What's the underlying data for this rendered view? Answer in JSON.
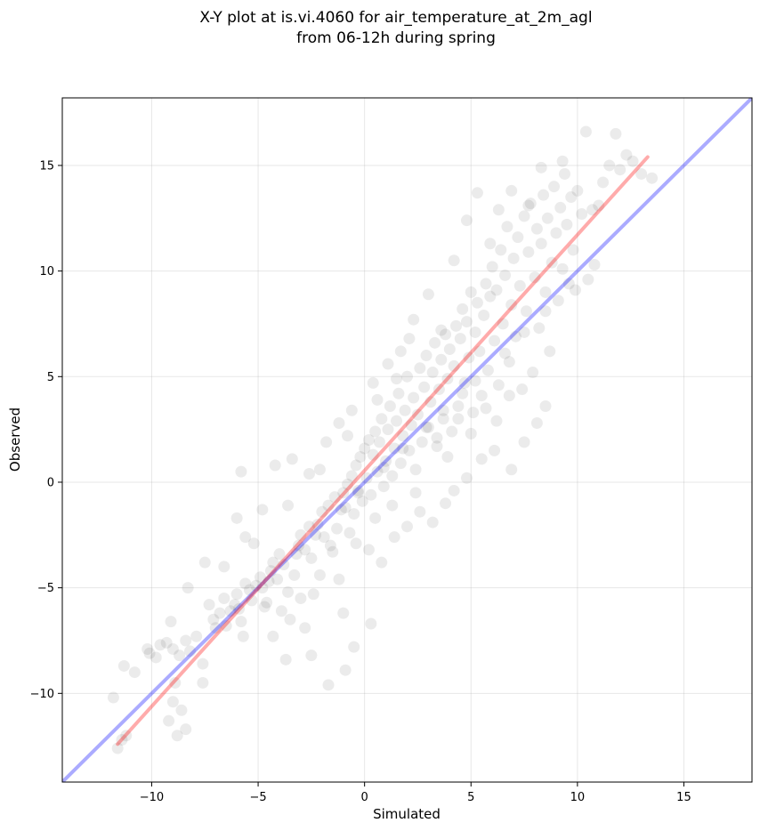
{
  "chart_data": {
    "type": "scatter",
    "title_lines": [
      "X-Y plot at is.vi.4060 for air_temperature_at_2m_agl",
      "from 06-12h during spring"
    ],
    "xlabel": "Simulated",
    "ylabel": "Observed",
    "xlim": [
      -14.2,
      18.2
    ],
    "ylim": [
      -14.2,
      18.2
    ],
    "xticks": [
      -10,
      -5,
      0,
      5,
      10,
      15
    ],
    "yticks": [
      -10,
      -5,
      0,
      5,
      10,
      15
    ],
    "xtick_labels": [
      "−10",
      "−5",
      "0",
      "5",
      "10",
      "15"
    ],
    "ytick_labels": [
      "−10",
      "−5",
      "0",
      "5",
      "10",
      "15"
    ],
    "grid": true,
    "legend": "none",
    "point_color": "#000000",
    "point_alpha": 0.08,
    "identity_line": {
      "x": [
        -14.2,
        18.2
      ],
      "y": [
        -14.2,
        18.2
      ],
      "color": "#0000ff",
      "alpha": 0.33
    },
    "fit_line": {
      "x": [
        -11.6,
        13.3
      ],
      "y": [
        -12.4,
        15.4
      ],
      "color": "#ff0000",
      "alpha": 0.33
    },
    "points": [
      [
        -11.6,
        -12.6
      ],
      [
        -11.4,
        -12.2
      ],
      [
        -11.2,
        -12.0
      ],
      [
        -11.8,
        -10.2
      ],
      [
        -11.3,
        -8.7
      ],
      [
        -10.8,
        -9.0
      ],
      [
        -10.1,
        -8.1
      ],
      [
        -9.6,
        -7.7
      ],
      [
        -9.8,
        -8.3
      ],
      [
        -9.3,
        -7.6
      ],
      [
        -9.0,
        -7.9
      ],
      [
        -8.7,
        -8.2
      ],
      [
        -8.4,
        -7.5
      ],
      [
        -8.2,
        -8.0
      ],
      [
        -7.9,
        -7.3
      ],
      [
        -7.6,
        -8.6
      ],
      [
        -8.9,
        -9.5
      ],
      [
        -9.0,
        -10.4
      ],
      [
        -9.2,
        -11.3
      ],
      [
        -8.8,
        -12.0
      ],
      [
        -8.4,
        -11.7
      ],
      [
        -8.6,
        -10.8
      ],
      [
        -7.6,
        -9.5
      ],
      [
        -7.3,
        -5.8
      ],
      [
        -7.1,
        -6.5
      ],
      [
        -7.0,
        -6.9
      ],
      [
        -6.8,
        -6.2
      ],
      [
        -6.6,
        -5.5
      ],
      [
        -6.5,
        -6.8
      ],
      [
        -6.3,
        -6.1
      ],
      [
        -6.1,
        -5.8
      ],
      [
        -6.0,
        -5.3
      ],
      [
        -5.8,
        -6.6
      ],
      [
        -5.7,
        -7.3
      ],
      [
        -5.9,
        -6.0
      ],
      [
        -5.6,
        -4.8
      ],
      [
        -5.4,
        -5.1
      ],
      [
        -5.3,
        -5.6
      ],
      [
        -5.1,
        -4.9
      ],
      [
        -4.9,
        -4.5
      ],
      [
        -4.8,
        -5.0
      ],
      [
        -4.6,
        -5.7
      ],
      [
        -4.4,
        -4.2
      ],
      [
        -4.3,
        -3.8
      ],
      [
        -4.1,
        -4.6
      ],
      [
        -4.0,
        -3.4
      ],
      [
        -3.8,
        -3.9
      ],
      [
        -3.6,
        -5.2
      ],
      [
        -3.5,
        -6.5
      ],
      [
        -3.3,
        -4.4
      ],
      [
        -3.1,
        -3.0
      ],
      [
        -3.0,
        -2.5
      ],
      [
        -2.8,
        -3.2
      ],
      [
        -2.6,
        -2.1
      ],
      [
        -2.5,
        -3.6
      ],
      [
        -2.4,
        -5.3
      ],
      [
        -2.2,
        -2.0
      ],
      [
        -2.0,
        -1.4
      ],
      [
        -1.9,
        -2.6
      ],
      [
        -1.7,
        -1.1
      ],
      [
        -1.6,
        -3.0
      ],
      [
        -1.4,
        -0.7
      ],
      [
        -1.3,
        -2.2
      ],
      [
        -1.2,
        -4.6
      ],
      [
        -1.0,
        -0.5
      ],
      [
        -0.9,
        -1.2
      ],
      [
        -0.8,
        -0.1
      ],
      [
        -0.7,
        -2.4
      ],
      [
        -0.6,
        0.3
      ],
      [
        -0.5,
        -1.5
      ],
      [
        -0.4,
        0.8
      ],
      [
        -0.3,
        -0.4
      ],
      [
        -0.2,
        1.2
      ],
      [
        -0.1,
        -0.9
      ],
      [
        0.0,
        1.6
      ],
      [
        0.1,
        0.2
      ],
      [
        0.2,
        2.0
      ],
      [
        0.3,
        -0.6
      ],
      [
        0.4,
        1.3
      ],
      [
        0.5,
        2.4
      ],
      [
        0.6,
        0.5
      ],
      [
        0.7,
        1.9
      ],
      [
        0.8,
        3.0
      ],
      [
        0.9,
        -0.2
      ],
      [
        1.0,
        1.0
      ],
      [
        1.1,
        2.5
      ],
      [
        1.2,
        3.6
      ],
      [
        1.3,
        0.3
      ],
      [
        1.4,
        1.6
      ],
      [
        1.5,
        2.9
      ],
      [
        1.6,
        4.2
      ],
      [
        1.7,
        0.9
      ],
      [
        1.8,
        2.2
      ],
      [
        1.9,
        3.4
      ],
      [
        2.0,
        5.0
      ],
      [
        2.1,
        1.5
      ],
      [
        2.2,
        2.7
      ],
      [
        2.3,
        4.0
      ],
      [
        2.4,
        0.6
      ],
      [
        2.5,
        3.2
      ],
      [
        2.6,
        5.4
      ],
      [
        2.7,
        1.9
      ],
      [
        2.8,
        4.5
      ],
      [
        2.9,
        6.0
      ],
      [
        3.0,
        2.6
      ],
      [
        3.1,
        3.8
      ],
      [
        3.2,
        5.2
      ],
      [
        3.3,
        6.6
      ],
      [
        3.4,
        1.7
      ],
      [
        3.5,
        4.4
      ],
      [
        3.6,
        5.8
      ],
      [
        3.7,
        3.0
      ],
      [
        3.8,
        7.0
      ],
      [
        3.9,
        4.9
      ],
      [
        4.0,
        6.3
      ],
      [
        4.1,
        2.4
      ],
      [
        4.2,
        5.5
      ],
      [
        4.3,
        7.4
      ],
      [
        4.4,
        3.6
      ],
      [
        4.5,
        6.8
      ],
      [
        4.6,
        8.2
      ],
      [
        4.7,
        4.7
      ],
      [
        4.8,
        7.6
      ],
      [
        4.9,
        5.9
      ],
      [
        5.0,
        9.0
      ],
      [
        5.1,
        3.3
      ],
      [
        5.2,
        7.1
      ],
      [
        5.3,
        8.5
      ],
      [
        5.4,
        6.2
      ],
      [
        5.5,
        4.1
      ],
      [
        5.6,
        7.9
      ],
      [
        5.7,
        9.4
      ],
      [
        5.8,
        5.3
      ],
      [
        5.9,
        8.8
      ],
      [
        6.0,
        10.2
      ],
      [
        6.1,
        6.7
      ],
      [
        6.2,
        9.1
      ],
      [
        6.3,
        4.6
      ],
      [
        6.4,
        11.0
      ],
      [
        6.5,
        7.5
      ],
      [
        6.6,
        9.8
      ],
      [
        6.7,
        12.1
      ],
      [
        6.8,
        5.7
      ],
      [
        6.9,
        8.4
      ],
      [
        7.0,
        10.6
      ],
      [
        7.1,
        6.9
      ],
      [
        7.2,
        11.6
      ],
      [
        7.3,
        9.3
      ],
      [
        7.4,
        4.4
      ],
      [
        7.5,
        12.6
      ],
      [
        7.6,
        8.1
      ],
      [
        7.7,
        10.9
      ],
      [
        7.8,
        13.2
      ],
      [
        7.9,
        5.2
      ],
      [
        8.0,
        9.7
      ],
      [
        8.1,
        12.0
      ],
      [
        8.2,
        7.3
      ],
      [
        8.3,
        11.3
      ],
      [
        8.4,
        13.6
      ],
      [
        8.5,
        9.0
      ],
      [
        8.6,
        12.5
      ],
      [
        8.7,
        6.2
      ],
      [
        8.8,
        10.4
      ],
      [
        8.9,
        14.0
      ],
      [
        9.0,
        11.8
      ],
      [
        9.1,
        8.6
      ],
      [
        9.2,
        13.0
      ],
      [
        9.3,
        10.1
      ],
      [
        9.4,
        14.6
      ],
      [
        9.5,
        12.2
      ],
      [
        9.6,
        9.4
      ],
      [
        9.7,
        13.5
      ],
      [
        9.8,
        11.0
      ],
      [
        10.0,
        13.8
      ],
      [
        10.2,
        12.7
      ],
      [
        10.4,
        16.6
      ],
      [
        10.5,
        9.6
      ],
      [
        10.7,
        12.9
      ],
      [
        11.0,
        13.1
      ],
      [
        11.2,
        14.2
      ],
      [
        11.5,
        15.0
      ],
      [
        11.8,
        16.5
      ],
      [
        12.0,
        14.8
      ],
      [
        12.3,
        15.5
      ],
      [
        12.6,
        15.2
      ],
      [
        13.0,
        14.6
      ],
      [
        13.5,
        14.4
      ],
      [
        10.8,
        10.3
      ],
      [
        9.9,
        9.1
      ],
      [
        8.5,
        8.1
      ],
      [
        7.5,
        7.1
      ],
      [
        6.6,
        6.1
      ],
      [
        5.2,
        4.8
      ],
      [
        4.6,
        4.2
      ],
      [
        3.7,
        3.4
      ],
      [
        2.9,
        2.6
      ],
      [
        1.8,
        1.6
      ],
      [
        0.9,
        0.7
      ],
      [
        -0.3,
        -0.5
      ],
      [
        -1.1,
        -1.3
      ],
      [
        -2.3,
        -2.5
      ],
      [
        -3.2,
        -3.4
      ],
      [
        -4.5,
        -4.7
      ],
      [
        0.2,
        -3.2
      ],
      [
        0.8,
        -3.8
      ],
      [
        1.4,
        -2.6
      ],
      [
        2.0,
        -2.1
      ],
      [
        2.6,
        -1.4
      ],
      [
        3.2,
        -1.9
      ],
      [
        3.8,
        -1.0
      ],
      [
        4.2,
        -0.4
      ],
      [
        4.8,
        0.2
      ],
      [
        5.5,
        1.1
      ],
      [
        6.1,
        1.5
      ],
      [
        6.9,
        0.6
      ],
      [
        7.5,
        1.9
      ],
      [
        8.1,
        2.8
      ],
      [
        8.5,
        3.6
      ],
      [
        -1.0,
        -6.2
      ],
      [
        -0.5,
        -7.8
      ],
      [
        0.3,
        -6.7
      ],
      [
        -1.7,
        -9.6
      ],
      [
        -0.9,
        -8.9
      ],
      [
        -2.5,
        -8.2
      ],
      [
        -3.7,
        -8.4
      ],
      [
        -4.3,
        -7.3
      ],
      [
        -2.8,
        -6.9
      ],
      [
        -5.8,
        0.5
      ],
      [
        -6.0,
        -1.7
      ],
      [
        -5.6,
        -2.6
      ],
      [
        -4.8,
        -1.3
      ],
      [
        -4.2,
        0.8
      ],
      [
        -3.4,
        1.1
      ],
      [
        -2.6,
        0.4
      ],
      [
        -1.8,
        1.9
      ],
      [
        -1.2,
        2.8
      ],
      [
        -0.6,
        3.4
      ],
      [
        0.4,
        4.7
      ],
      [
        1.1,
        5.6
      ],
      [
        1.7,
        6.2
      ],
      [
        2.3,
        7.7
      ],
      [
        3.0,
        8.9
      ],
      [
        3.6,
        7.2
      ],
      [
        4.2,
        10.5
      ],
      [
        4.8,
        12.4
      ],
      [
        5.3,
        13.7
      ],
      [
        5.9,
        11.3
      ],
      [
        6.3,
        12.9
      ],
      [
        6.9,
        13.8
      ],
      [
        7.7,
        13.1
      ],
      [
        8.3,
        14.9
      ],
      [
        9.3,
        15.2
      ],
      [
        2.1,
        6.8
      ],
      [
        1.5,
        4.9
      ],
      [
        0.6,
        3.9
      ],
      [
        -0.8,
        2.2
      ],
      [
        -2.1,
        0.6
      ],
      [
        -3.6,
        -1.1
      ],
      [
        -5.2,
        -2.9
      ],
      [
        -6.6,
        -4.0
      ],
      [
        -7.5,
        -3.8
      ],
      [
        -8.3,
        -5.0
      ],
      [
        -9.1,
        -6.6
      ],
      [
        -10.2,
        -7.9
      ],
      [
        3.4,
        2.1
      ],
      [
        3.9,
        1.2
      ],
      [
        4.4,
        3.0
      ],
      [
        5.0,
        2.3
      ],
      [
        5.7,
        3.5
      ],
      [
        6.2,
        2.9
      ],
      [
        6.8,
        4.1
      ],
      [
        2.4,
        -0.5
      ],
      [
        1.3,
        -1.1
      ],
      [
        0.5,
        -1.7
      ],
      [
        -0.4,
        -2.9
      ],
      [
        -1.5,
        -3.3
      ],
      [
        -2.1,
        -4.4
      ],
      [
        -3.0,
        -5.5
      ],
      [
        -3.9,
        -6.1
      ],
      [
        -4.7,
        -5.9
      ]
    ]
  }
}
